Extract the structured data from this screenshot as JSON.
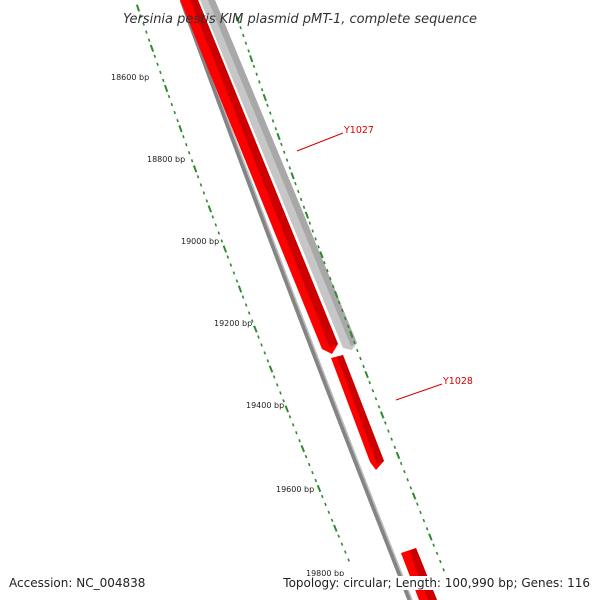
{
  "title": "Yersinia pestis KIM plasmid pMT-1, complete sequence",
  "accession": "Accession: NC_004838",
  "summary": "Topology: circular; Length: 100,990 bp; Genes: 116",
  "genes": [
    {
      "name": "Y1027",
      "strand": "reverse",
      "color": "#c8c8c8"
    },
    {
      "name": "Y1028",
      "strand": "forward",
      "color": "#ff0000"
    }
  ],
  "tick_labels": [
    "18600 bp",
    "18800 bp",
    "19000 bp",
    "19200 bp",
    "19400 bp",
    "19600 bp",
    "19800 bp"
  ],
  "colors": {
    "backbone": "#808080",
    "forward_feature": "#ff0000",
    "reverse_feature": "#c8c8c8",
    "label": "#d40000",
    "ticks": "#2e8b2e"
  }
}
